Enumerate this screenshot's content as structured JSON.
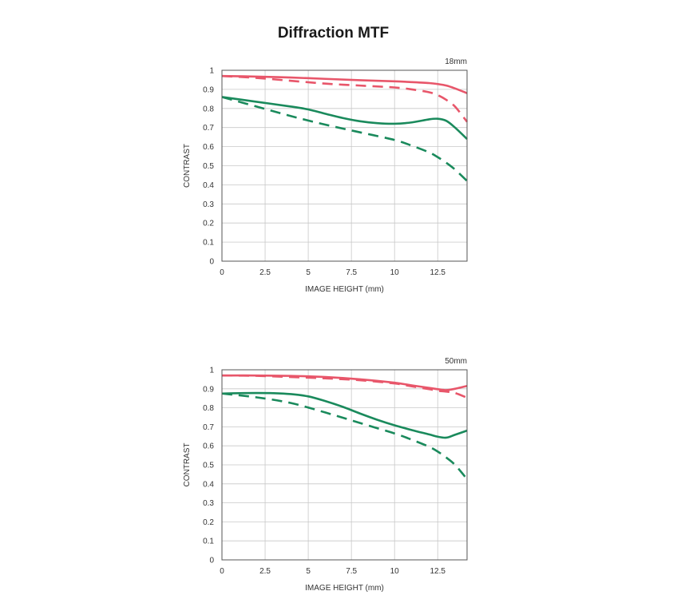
{
  "title": "Diffraction MTF",
  "chart_data": [
    {
      "type": "line",
      "title": "18mm",
      "xlabel": "IMAGE HEIGHT (mm)",
      "ylabel": "CONTRAST",
      "xlim": [
        0,
        14.2
      ],
      "ylim": [
        0,
        1
      ],
      "xticks": [
        0,
        2.5,
        5,
        7.5,
        10,
        12.5
      ],
      "xtick_labels": [
        "0",
        "2.5",
        "5",
        "7.5",
        "10",
        "12.5"
      ],
      "yticks": [
        0,
        0.1,
        0.2,
        0.3,
        0.4,
        0.5,
        0.6,
        0.7,
        0.8,
        0.9,
        1
      ],
      "ytick_labels": [
        "0",
        "0.1",
        "0.2",
        "0.3",
        "0.4",
        "0.5",
        "0.6",
        "0.7",
        "0.8",
        "0.9",
        "1"
      ],
      "grid": true,
      "series": [
        {
          "name": "red-solid",
          "color": "#e8566a",
          "style": "solid",
          "x": [
            0,
            2,
            4,
            6,
            8,
            10,
            11,
            12,
            12.5,
            13,
            13.5,
            14.2
          ],
          "y": [
            0.97,
            0.967,
            0.962,
            0.955,
            0.948,
            0.942,
            0.938,
            0.933,
            0.928,
            0.92,
            0.905,
            0.88
          ]
        },
        {
          "name": "red-dashed",
          "color": "#e8566a",
          "style": "dashed",
          "x": [
            0,
            2,
            4,
            6,
            8,
            10,
            11,
            12,
            12.5,
            13,
            13.5,
            14.2
          ],
          "y": [
            0.97,
            0.96,
            0.945,
            0.93,
            0.92,
            0.91,
            0.9,
            0.885,
            0.87,
            0.845,
            0.81,
            0.73
          ]
        },
        {
          "name": "green-solid",
          "color": "#1a8a5c",
          "style": "solid",
          "x": [
            0,
            2,
            4,
            5,
            6,
            7,
            8,
            9,
            10,
            11,
            12,
            12.5,
            13,
            13.5,
            14.2
          ],
          "y": [
            0.86,
            0.835,
            0.81,
            0.795,
            0.772,
            0.75,
            0.733,
            0.723,
            0.72,
            0.727,
            0.743,
            0.746,
            0.735,
            0.7,
            0.64
          ]
        },
        {
          "name": "green-dashed",
          "color": "#1a8a5c",
          "style": "dashed",
          "x": [
            0,
            2,
            4,
            6,
            8,
            10,
            11,
            12,
            12.5,
            13,
            13.5,
            14.2
          ],
          "y": [
            0.86,
            0.81,
            0.76,
            0.715,
            0.675,
            0.635,
            0.605,
            0.57,
            0.545,
            0.515,
            0.48,
            0.42
          ]
        }
      ]
    },
    {
      "type": "line",
      "title": "50mm",
      "xlabel": "IMAGE HEIGHT (mm)",
      "ylabel": "CONTRAST",
      "xlim": [
        0,
        14.2
      ],
      "ylim": [
        0,
        1
      ],
      "xticks": [
        0,
        2.5,
        5,
        7.5,
        10,
        12.5
      ],
      "xtick_labels": [
        "0",
        "2.5",
        "5",
        "7.5",
        "10",
        "12.5"
      ],
      "yticks": [
        0,
        0.1,
        0.2,
        0.3,
        0.4,
        0.5,
        0.6,
        0.7,
        0.8,
        0.9,
        1
      ],
      "ytick_labels": [
        "0",
        "0.1",
        "0.2",
        "0.3",
        "0.4",
        "0.5",
        "0.6",
        "0.7",
        "0.8",
        "0.9",
        "1"
      ],
      "grid": true,
      "series": [
        {
          "name": "red-solid",
          "color": "#e8566a",
          "style": "solid",
          "x": [
            0,
            2,
            4,
            6,
            8,
            10,
            11,
            12,
            12.5,
            13,
            13.5,
            14.2
          ],
          "y": [
            0.97,
            0.97,
            0.968,
            0.962,
            0.95,
            0.932,
            0.918,
            0.905,
            0.898,
            0.893,
            0.9,
            0.915
          ]
        },
        {
          "name": "red-dashed",
          "color": "#e8566a",
          "style": "dashed",
          "x": [
            0,
            2,
            4,
            6,
            8,
            10,
            11,
            12,
            12.5,
            13,
            13.5,
            14.2
          ],
          "y": [
            0.97,
            0.968,
            0.962,
            0.955,
            0.945,
            0.928,
            0.913,
            0.898,
            0.89,
            0.885,
            0.878,
            0.853
          ]
        },
        {
          "name": "green-solid",
          "color": "#1a8a5c",
          "style": "solid",
          "x": [
            0,
            1,
            2,
            3,
            4,
            5,
            6,
            7,
            8,
            9,
            10,
            11,
            12,
            12.5,
            13,
            13.5,
            14.2
          ],
          "y": [
            0.875,
            0.877,
            0.878,
            0.877,
            0.872,
            0.86,
            0.835,
            0.805,
            0.77,
            0.737,
            0.708,
            0.683,
            0.66,
            0.648,
            0.643,
            0.658,
            0.68
          ]
        },
        {
          "name": "green-dashed",
          "color": "#1a8a5c",
          "style": "dashed",
          "x": [
            0,
            2,
            4,
            6,
            8,
            10,
            11,
            12,
            12.5,
            13,
            13.5,
            14.2
          ],
          "y": [
            0.875,
            0.855,
            0.825,
            0.775,
            0.72,
            0.665,
            0.632,
            0.595,
            0.57,
            0.538,
            0.5,
            0.425
          ]
        }
      ]
    }
  ]
}
